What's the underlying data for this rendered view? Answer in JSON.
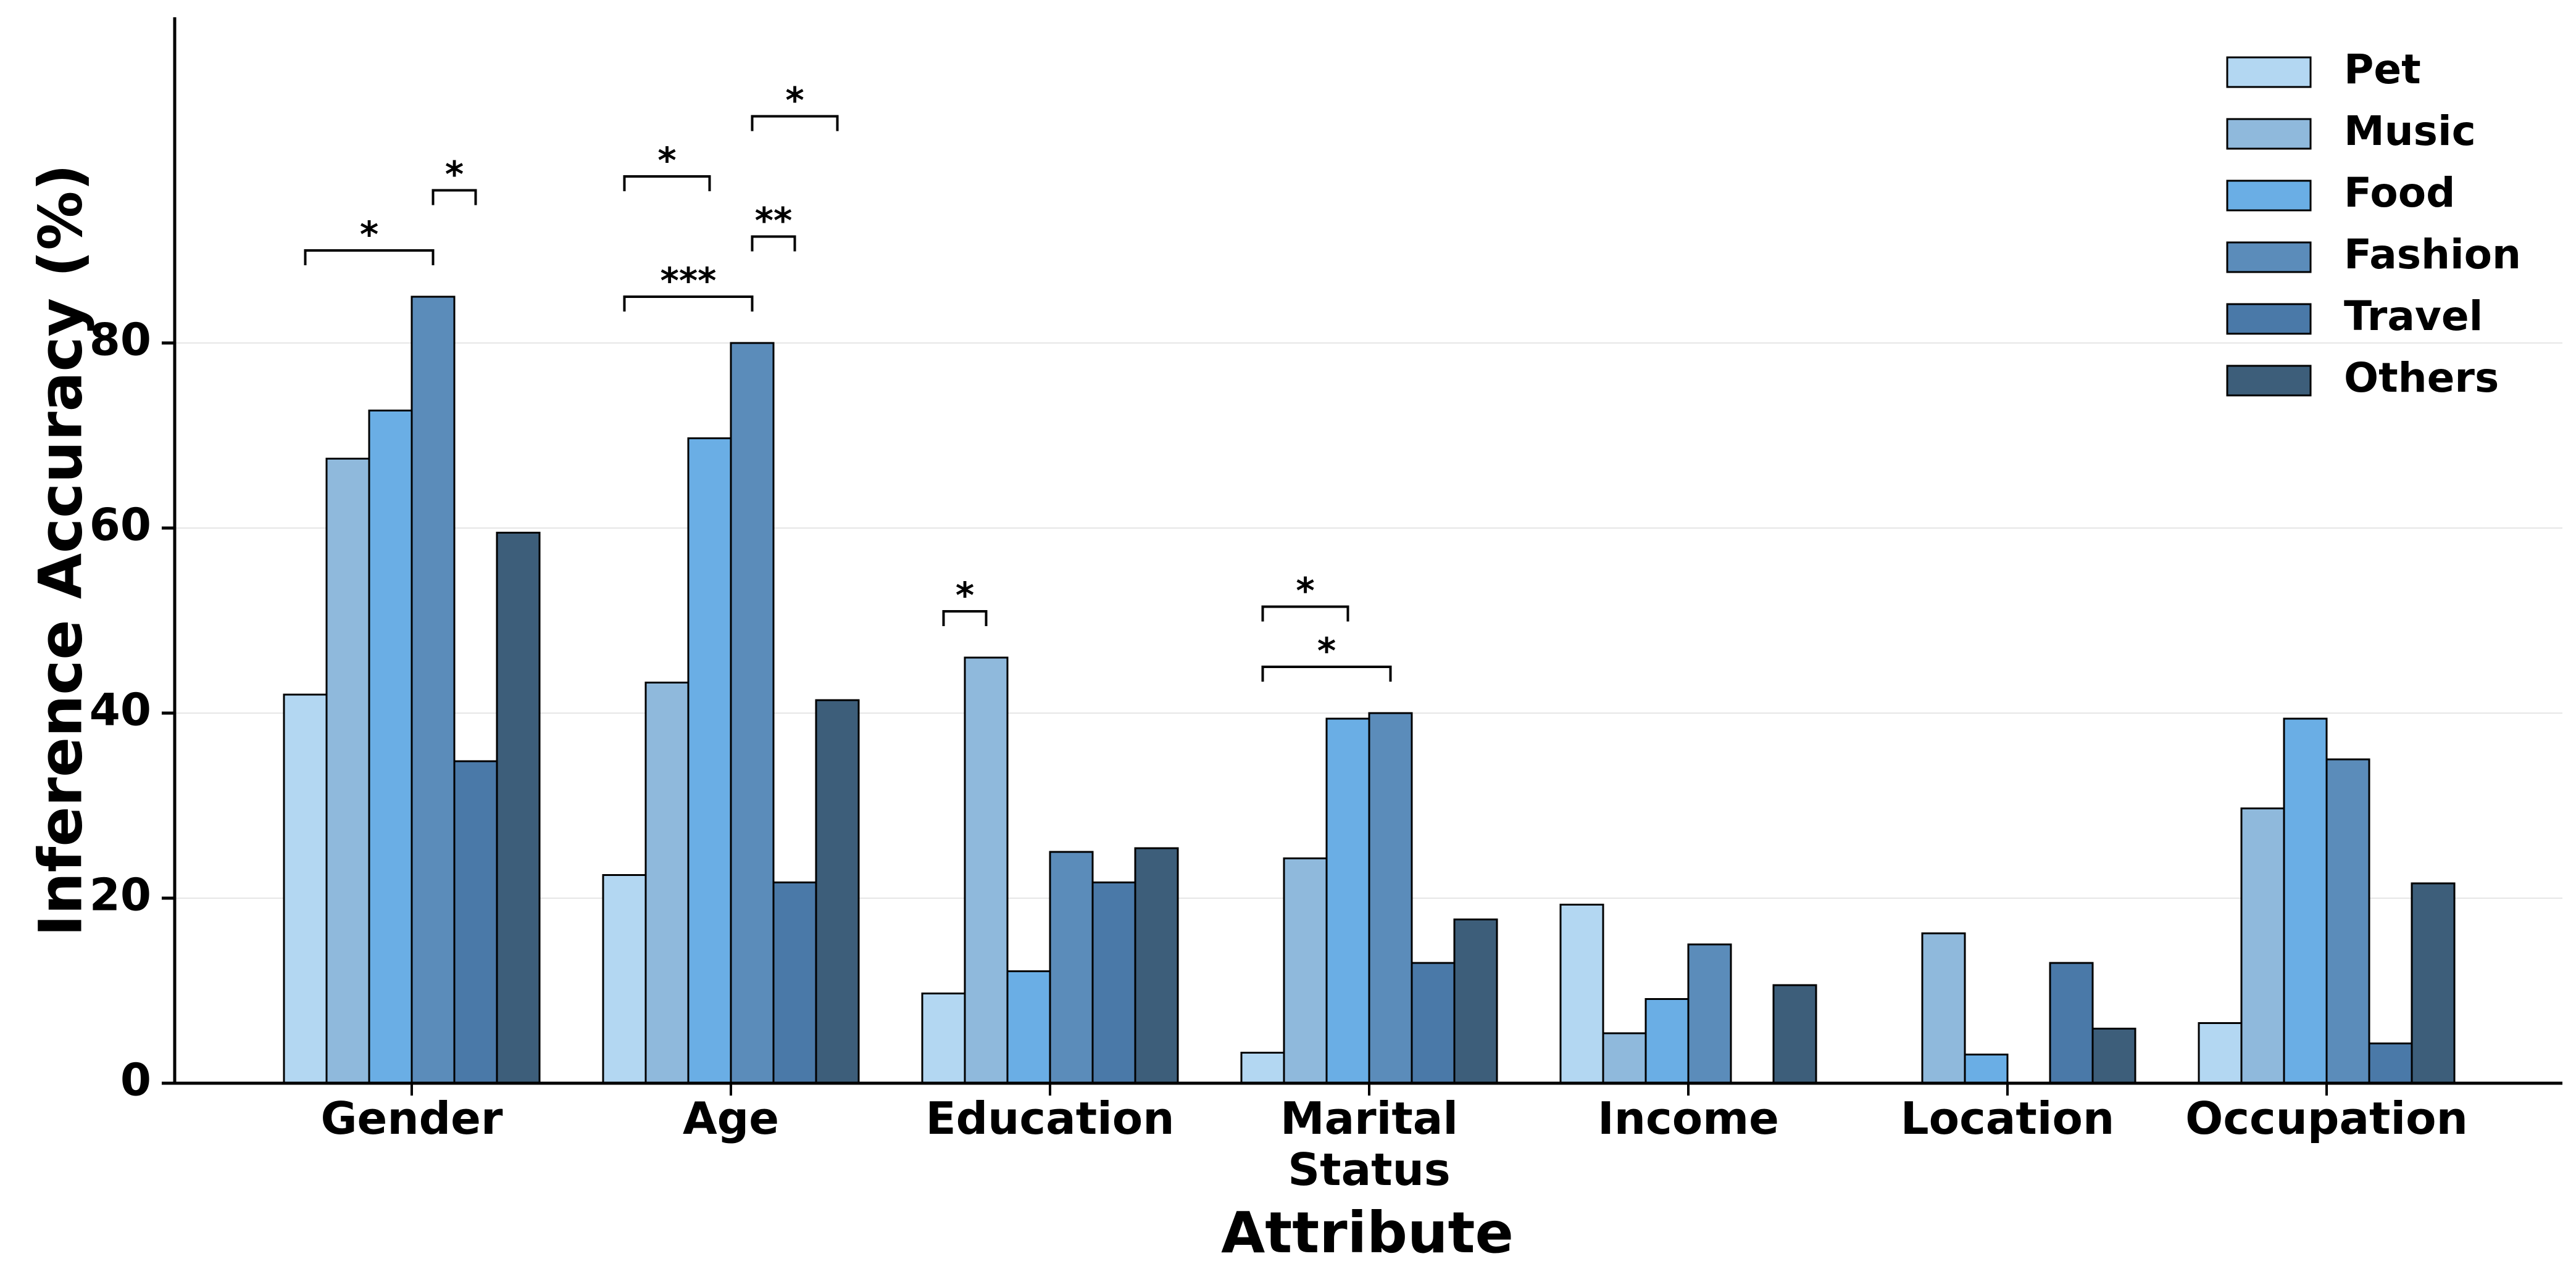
{
  "chart_data": {
    "type": "bar",
    "xlabel": "Attribute",
    "ylabel": "Inference Accuracy (%)",
    "ylim": [
      0,
      115
    ],
    "yticks": [
      0,
      20,
      40,
      60,
      80
    ],
    "grid": "y",
    "legend_position": "top-right",
    "categories": [
      "Gender",
      "Age",
      "Education",
      "Marital Status",
      "Income",
      "Location",
      "Occupation"
    ],
    "category_label_lines": [
      [
        "Gender"
      ],
      [
        "Age"
      ],
      [
        "Education"
      ],
      [
        "Marital",
        "Status"
      ],
      [
        "Income"
      ],
      [
        "Location"
      ],
      [
        "Occupation"
      ]
    ],
    "series": [
      {
        "name": "Pet",
        "color": "#b3d7f2",
        "values": [
          42.0,
          22.5,
          9.7,
          3.3,
          19.3,
          0,
          6.5
        ]
      },
      {
        "name": "Music",
        "color": "#8fb9dc",
        "values": [
          67.5,
          43.3,
          46.0,
          24.3,
          5.4,
          16.2,
          29.7
        ]
      },
      {
        "name": "Food",
        "color": "#6aaee5",
        "values": [
          72.7,
          69.7,
          12.1,
          39.4,
          9.1,
          3.1,
          39.4
        ]
      },
      {
        "name": "Fashion",
        "color": "#5b8cba",
        "values": [
          85.0,
          80.0,
          25.0,
          40.0,
          15.0,
          0,
          35.0
        ]
      },
      {
        "name": "Travel",
        "color": "#4a79a8",
        "values": [
          34.8,
          21.7,
          21.7,
          13.0,
          0,
          13.0,
          4.3
        ]
      },
      {
        "name": "Others",
        "color": "#3d5e7a",
        "values": [
          59.5,
          41.4,
          25.4,
          17.7,
          10.6,
          5.9,
          21.6
        ]
      }
    ],
    "significance": [
      {
        "category": 0,
        "from_series": 0,
        "to_series": 3,
        "level": 90,
        "label": "*"
      },
      {
        "category": 0,
        "from_series": 3,
        "to_series": 4,
        "level": 96.5,
        "label": "*"
      },
      {
        "category": 1,
        "from_series": 0,
        "to_series": 3,
        "level": 85,
        "label": "***"
      },
      {
        "category": 1,
        "from_series": 0,
        "to_series": 2,
        "level": 98,
        "label": "*"
      },
      {
        "category": 1,
        "from_series": 3,
        "to_series": 4,
        "level": 91.5,
        "label": "**"
      },
      {
        "category": 1,
        "from_series": 3,
        "to_series": 5,
        "level": 104.5,
        "label": "*"
      },
      {
        "category": 2,
        "from_series": 0,
        "to_series": 1,
        "level": 51,
        "label": "*"
      },
      {
        "category": 3,
        "from_series": 0,
        "to_series": 2,
        "level": 51.5,
        "label": "*"
      },
      {
        "category": 3,
        "from_series": 0,
        "to_series": 3,
        "level": 45,
        "label": "*"
      }
    ]
  }
}
